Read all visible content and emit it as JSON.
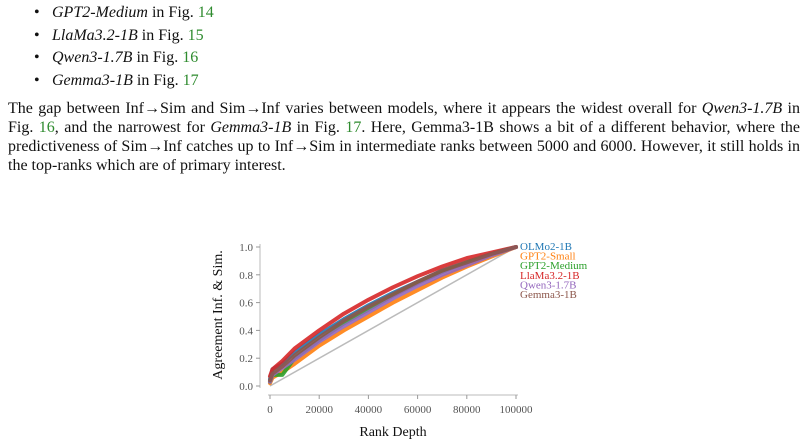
{
  "bullets": [
    {
      "model": "GPT2-Medium",
      "mid": " in Fig. ",
      "fig": "14"
    },
    {
      "model": "LlaMa3.2-1B",
      "mid": " in Fig. ",
      "fig": "15"
    },
    {
      "model": "Qwen3-1.7B",
      "mid": " in Fig. ",
      "fig": "16"
    },
    {
      "model": "Gemma3-1B",
      "mid": " in Fig. ",
      "fig": "17"
    }
  ],
  "paragraph": {
    "t1": "The gap between Inf→Sim and Sim→Inf varies between models, where it appears the widest overall for ",
    "m1": "Qwen3-1.7B",
    "t2": " in Fig. ",
    "f1": "16",
    "t3": ", and the narrowest for ",
    "m2": "Gemma3-1B",
    "t4": " in Fig. ",
    "f2": "17",
    "t5": ". Here, Gemma3-1B shows a bit of a different behavior, where the predictiveness of Sim→Inf catches up to Inf→Sim in intermediate ranks between 5000 and 6000. However, it still holds in the top-ranks which are of primary interest."
  },
  "chart_data": {
    "type": "line",
    "xlabel": "Rank Depth",
    "ylabel": "Agreement Inf. & Sim.",
    "xlim": [
      0,
      100000
    ],
    "ylim": [
      0.0,
      1.0
    ],
    "x_ticks": [
      "0",
      "20000",
      "40000",
      "60000",
      "80000",
      "100000"
    ],
    "y_ticks": [
      "0.0",
      "0.2",
      "0.4",
      "0.6",
      "0.8",
      "1.0"
    ],
    "grid": false,
    "legend_placement": "top-right",
    "x": [
      0,
      1000,
      5000,
      10000,
      20000,
      30000,
      40000,
      50000,
      60000,
      70000,
      80000,
      90000,
      100000
    ],
    "series": [
      {
        "name": "OLMo2-1B",
        "color": "#1f77b4",
        "values": [
          0.05,
          0.12,
          0.16,
          0.24,
          0.37,
          0.48,
          0.58,
          0.67,
          0.75,
          0.83,
          0.89,
          0.95,
          1.0
        ]
      },
      {
        "name": "GPT2-Small",
        "color": "#ff7f0e",
        "values": [
          0.02,
          0.06,
          0.1,
          0.16,
          0.29,
          0.4,
          0.5,
          0.6,
          0.69,
          0.78,
          0.86,
          0.93,
          1.0
        ]
      },
      {
        "name": "GPT2-Medium",
        "color": "#2ca02c",
        "values": [
          0.03,
          0.08,
          0.08,
          0.2,
          0.33,
          0.45,
          0.55,
          0.65,
          0.74,
          0.82,
          0.89,
          0.95,
          1.0
        ]
      },
      {
        "name": "LlaMa3.2-1B",
        "color": "#d62728",
        "values": [
          0.07,
          0.12,
          0.18,
          0.27,
          0.4,
          0.52,
          0.62,
          0.71,
          0.79,
          0.86,
          0.92,
          0.96,
          1.0
        ]
      },
      {
        "name": "Qwen3-1.7B",
        "color": "#9467bd",
        "values": [
          0.03,
          0.08,
          0.13,
          0.19,
          0.32,
          0.43,
          0.53,
          0.63,
          0.72,
          0.8,
          0.87,
          0.94,
          1.0
        ]
      },
      {
        "name": "Gemma3-1B",
        "color": "#8c564b",
        "values": [
          0.04,
          0.09,
          0.14,
          0.22,
          0.35,
          0.47,
          0.57,
          0.66,
          0.75,
          0.83,
          0.89,
          0.95,
          1.0
        ]
      }
    ],
    "reference": {
      "color": "#bbbbbb",
      "x": [
        0,
        100000
      ],
      "values": [
        0.0,
        1.0
      ]
    }
  }
}
